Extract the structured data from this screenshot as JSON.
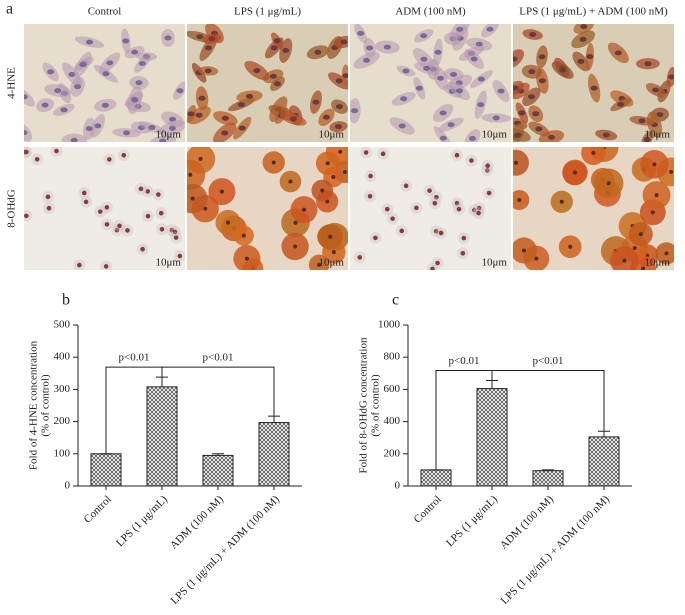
{
  "panel_a": {
    "label": "a",
    "columns": [
      "Control",
      "LPS (1 μg/mL)",
      "ADM (100 nM)",
      "LPS (1 μg/mL) + ADM (100 nM)"
    ],
    "rows": [
      "4-HNE",
      "8-OHdG"
    ],
    "scale_label": "10μm"
  },
  "chart_data": [
    {
      "type": "bar",
      "panel": "b",
      "ylabel": [
        "Fold of 4-HNE concentration",
        "(% of control)"
      ],
      "categories": [
        "Control",
        "LPS (1 μg/mL)",
        "ADM (100 nM)",
        "LPS (1 μg/mL) + ADM (100 nM)"
      ],
      "values": [
        100,
        308,
        95,
        197
      ],
      "errors": [
        0,
        30,
        5,
        20
      ],
      "ylim": [
        0,
        500
      ],
      "yticks": [
        0,
        100,
        200,
        300,
        400,
        500
      ],
      "annotations": [
        "p<0.01",
        "p<0.01"
      ]
    },
    {
      "type": "bar",
      "panel": "c",
      "ylabel": [
        "Fold of 8-OHdG concentration",
        "(% of control)"
      ],
      "categories": [
        "Control",
        "LPS (1 μg/mL)",
        "ADM (100 nM)",
        "LPS (1 μg/mL) + ADM (100 nM)"
      ],
      "values": [
        100,
        605,
        95,
        305
      ],
      "errors": [
        0,
        50,
        5,
        35
      ],
      "ylim": [
        0,
        1000
      ],
      "yticks": [
        0,
        200,
        400,
        600,
        800,
        1000
      ],
      "annotations": [
        "p<0.01",
        "p<0.01"
      ]
    }
  ]
}
